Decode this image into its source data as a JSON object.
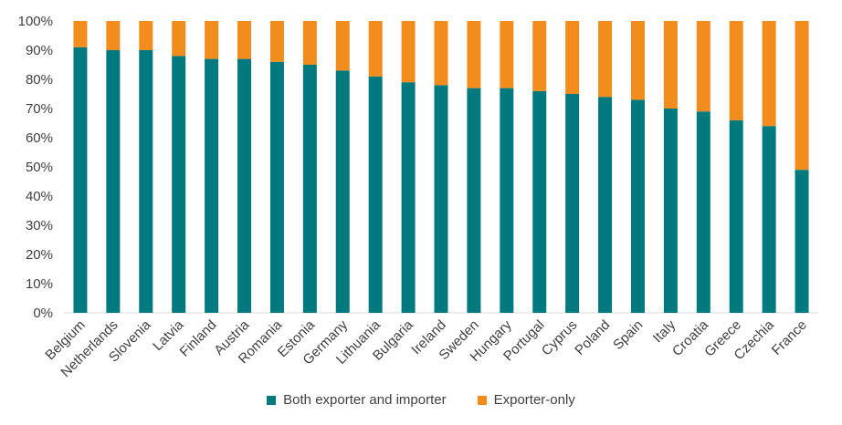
{
  "chart_data": {
    "type": "bar",
    "stacked": true,
    "categories": [
      "Belgium",
      "Netherlands",
      "Slovenia",
      "Latvia",
      "Finland",
      "Austria",
      "Romania",
      "Estonia",
      "Germany",
      "Lithuania",
      "Bulgaria",
      "Ireland",
      "Sweden",
      "Hungary",
      "Portugal",
      "Cyprus",
      "Poland",
      "Spain",
      "Italy",
      "Croatia",
      "Greece",
      "Czechia",
      "France"
    ],
    "series": [
      {
        "name": "Both exporter and importer",
        "color": "#007a7e",
        "values": [
          91,
          90,
          90,
          88,
          87,
          87,
          86,
          85,
          83,
          81,
          79,
          78,
          77,
          77,
          76,
          75,
          74,
          73,
          70,
          69,
          66,
          64,
          49
        ]
      },
      {
        "name": "Exporter-only",
        "color": "#f28c1c",
        "values": [
          9,
          10,
          10,
          12,
          13,
          13,
          14,
          15,
          17,
          19,
          21,
          22,
          23,
          23,
          24,
          25,
          26,
          27,
          30,
          31,
          34,
          36,
          51
        ]
      }
    ],
    "y_ticks": [
      "0%",
      "10%",
      "20%",
      "30%",
      "40%",
      "50%",
      "60%",
      "70%",
      "80%",
      "90%",
      "100%"
    ],
    "ylim": [
      0,
      100
    ],
    "legend_position": "bottom"
  }
}
